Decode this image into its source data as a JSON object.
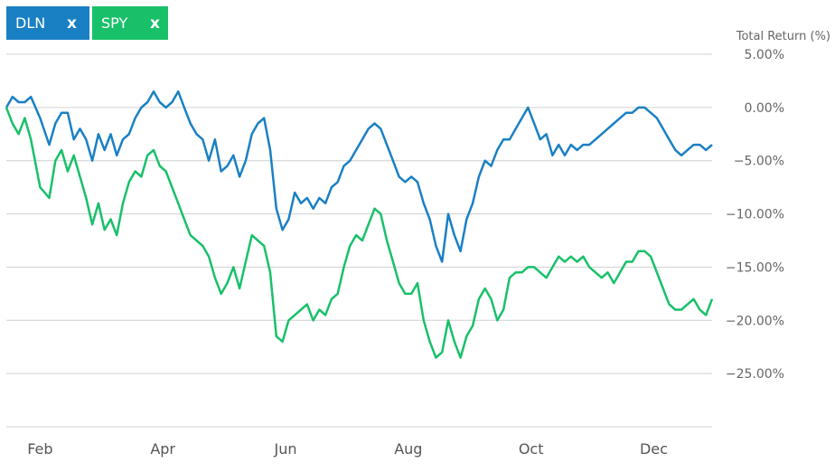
{
  "legend": [
    {
      "label": "DLN",
      "color": "#1a80c4",
      "remove_label": "x"
    },
    {
      "label": "SPY",
      "color": "#19c06a",
      "remove_label": "x"
    }
  ],
  "chart_data": {
    "type": "line",
    "ylabel": "Total Return (%)",
    "ylim": [
      -30,
      5
    ],
    "yticks": [
      {
        "value": 5,
        "label": "5.00%"
      },
      {
        "value": 0,
        "label": "0.00%"
      },
      {
        "value": -5,
        "label": "-5.00%"
      },
      {
        "value": -10,
        "label": "-10.00%"
      },
      {
        "value": -15,
        "label": "-15.00%"
      },
      {
        "value": -20,
        "label": "-20.00%"
      },
      {
        "value": -25,
        "label": "-25.00%"
      }
    ],
    "xlim": [
      1,
      12.5
    ],
    "xticks": [
      {
        "value": 1.55,
        "label": "Feb"
      },
      {
        "value": 3.55,
        "label": "Apr"
      },
      {
        "value": 5.55,
        "label": "Jun"
      },
      {
        "value": 7.55,
        "label": "Aug"
      },
      {
        "value": 9.55,
        "label": "Oct"
      },
      {
        "value": 11.55,
        "label": "Dec"
      }
    ],
    "grid": true,
    "series": [
      {
        "name": "DLN",
        "color": "#1a80c4",
        "x": [
          1.0,
          1.1,
          1.2,
          1.3,
          1.4,
          1.55,
          1.7,
          1.8,
          1.9,
          2.0,
          2.1,
          2.2,
          2.3,
          2.4,
          2.5,
          2.6,
          2.7,
          2.8,
          2.9,
          3.0,
          3.1,
          3.2,
          3.3,
          3.4,
          3.5,
          3.6,
          3.7,
          3.8,
          3.9,
          4.0,
          4.1,
          4.2,
          4.3,
          4.4,
          4.5,
          4.6,
          4.7,
          4.8,
          4.9,
          5.0,
          5.1,
          5.2,
          5.3,
          5.4,
          5.5,
          5.6,
          5.7,
          5.8,
          5.9,
          6.0,
          6.1,
          6.2,
          6.3,
          6.4,
          6.5,
          6.6,
          6.7,
          6.8,
          6.9,
          7.0,
          7.1,
          7.2,
          7.3,
          7.4,
          7.5,
          7.6,
          7.7,
          7.8,
          7.9,
          8.0,
          8.1,
          8.2,
          8.3,
          8.4,
          8.5,
          8.6,
          8.7,
          8.8,
          8.9,
          9.0,
          9.1,
          9.2,
          9.3,
          9.4,
          9.5,
          9.6,
          9.7,
          9.8,
          9.9,
          10.0,
          10.1,
          10.2,
          10.3,
          10.4,
          10.5,
          10.6,
          10.7,
          10.8,
          10.9,
          11.0,
          11.1,
          11.2,
          11.3,
          11.4,
          11.5,
          11.6,
          11.7,
          11.8,
          11.9,
          12.0,
          12.1,
          12.2,
          12.3,
          12.4,
          12.5
        ],
        "y": [
          0.0,
          1.0,
          0.5,
          0.5,
          1.0,
          -1.0,
          -3.5,
          -1.5,
          -0.5,
          -0.5,
          -3.0,
          -2.0,
          -3.0,
          -5.0,
          -2.5,
          -4.0,
          -2.5,
          -4.5,
          -3.0,
          -2.5,
          -1.0,
          0.0,
          0.5,
          1.5,
          0.5,
          0.0,
          0.5,
          1.5,
          0.0,
          -1.5,
          -2.5,
          -3.0,
          -5.0,
          -3.0,
          -6.0,
          -5.5,
          -4.5,
          -6.5,
          -5.0,
          -2.5,
          -1.5,
          -1.0,
          -4.0,
          -9.5,
          -11.5,
          -10.5,
          -8.0,
          -9.0,
          -8.5,
          -9.5,
          -8.5,
          -9.0,
          -7.5,
          -7.0,
          -5.5,
          -5.0,
          -4.0,
          -3.0,
          -2.0,
          -1.5,
          -2.0,
          -3.5,
          -5.0,
          -6.5,
          -7.0,
          -6.5,
          -7.0,
          -9.0,
          -10.5,
          -13.0,
          -14.5,
          -10.0,
          -12.0,
          -13.5,
          -10.5,
          -9.0,
          -6.5,
          -5.0,
          -5.5,
          -4.0,
          -3.0,
          -3.0,
          -2.0,
          -1.0,
          0.0,
          -1.5,
          -3.0,
          -2.5,
          -4.5,
          -3.5,
          -4.5,
          -3.5,
          -4.0,
          -3.5,
          -3.5,
          -3.0,
          -2.5,
          -2.0,
          -1.5,
          -1.0,
          -0.5,
          -0.5,
          0.0,
          0.0,
          -0.5,
          -1.0,
          -2.0,
          -3.0,
          -4.0,
          -4.5,
          -4.0,
          -3.5,
          -3.5,
          -4.0,
          -3.5
        ]
      },
      {
        "name": "SPY",
        "color": "#19c06a",
        "x": [
          1.0,
          1.1,
          1.2,
          1.3,
          1.4,
          1.55,
          1.7,
          1.8,
          1.9,
          2.0,
          2.1,
          2.2,
          2.3,
          2.4,
          2.5,
          2.6,
          2.7,
          2.8,
          2.9,
          3.0,
          3.1,
          3.2,
          3.3,
          3.4,
          3.5,
          3.6,
          3.7,
          3.8,
          3.9,
          4.0,
          4.1,
          4.2,
          4.3,
          4.4,
          4.5,
          4.6,
          4.7,
          4.8,
          4.9,
          5.0,
          5.1,
          5.2,
          5.3,
          5.4,
          5.5,
          5.6,
          5.7,
          5.8,
          5.9,
          6.0,
          6.1,
          6.2,
          6.3,
          6.4,
          6.5,
          6.6,
          6.7,
          6.8,
          6.9,
          7.0,
          7.1,
          7.2,
          7.3,
          7.4,
          7.5,
          7.6,
          7.7,
          7.8,
          7.9,
          8.0,
          8.1,
          8.2,
          8.3,
          8.4,
          8.5,
          8.6,
          8.7,
          8.8,
          8.9,
          9.0,
          9.1,
          9.2,
          9.3,
          9.4,
          9.5,
          9.6,
          9.7,
          9.8,
          9.9,
          10.0,
          10.1,
          10.2,
          10.3,
          10.4,
          10.5,
          10.6,
          10.7,
          10.8,
          10.9,
          11.0,
          11.1,
          11.2,
          11.3,
          11.4,
          11.5,
          11.6,
          11.7,
          11.8,
          11.9,
          12.0,
          12.1,
          12.2,
          12.3,
          12.4,
          12.5
        ],
        "y": [
          0.0,
          -1.5,
          -2.5,
          -1.0,
          -3.0,
          -7.5,
          -8.5,
          -5.0,
          -4.0,
          -6.0,
          -4.5,
          -6.5,
          -8.5,
          -11.0,
          -9.0,
          -11.5,
          -10.5,
          -12.0,
          -9.0,
          -7.0,
          -6.0,
          -6.5,
          -4.5,
          -4.0,
          -5.5,
          -6.0,
          -7.5,
          -9.0,
          -10.5,
          -12.0,
          -12.5,
          -13.0,
          -14.0,
          -16.0,
          -17.5,
          -16.5,
          -15.0,
          -17.0,
          -14.5,
          -12.0,
          -12.5,
          -13.0,
          -15.5,
          -21.5,
          -22.0,
          -20.0,
          -19.5,
          -19.0,
          -18.5,
          -20.0,
          -19.0,
          -19.5,
          -18.0,
          -17.5,
          -15.0,
          -13.0,
          -12.0,
          -12.5,
          -11.0,
          -9.5,
          -10.0,
          -12.5,
          -14.5,
          -16.5,
          -17.5,
          -17.5,
          -16.5,
          -20.0,
          -22.0,
          -23.5,
          -23.0,
          -20.0,
          -22.0,
          -23.5,
          -21.5,
          -20.5,
          -18.0,
          -17.0,
          -18.0,
          -20.0,
          -19.0,
          -16.0,
          -15.5,
          -15.5,
          -15.0,
          -15.0,
          -15.5,
          -16.0,
          -15.0,
          -14.0,
          -14.5,
          -14.0,
          -14.5,
          -14.0,
          -15.0,
          -15.5,
          -16.0,
          -15.5,
          -16.5,
          -15.5,
          -14.5,
          -14.5,
          -13.5,
          -13.5,
          -14.0,
          -15.5,
          -17.0,
          -18.5,
          -19.0,
          -19.0,
          -18.5,
          -18.0,
          -19.0,
          -19.5,
          -18.0
        ]
      }
    ]
  }
}
